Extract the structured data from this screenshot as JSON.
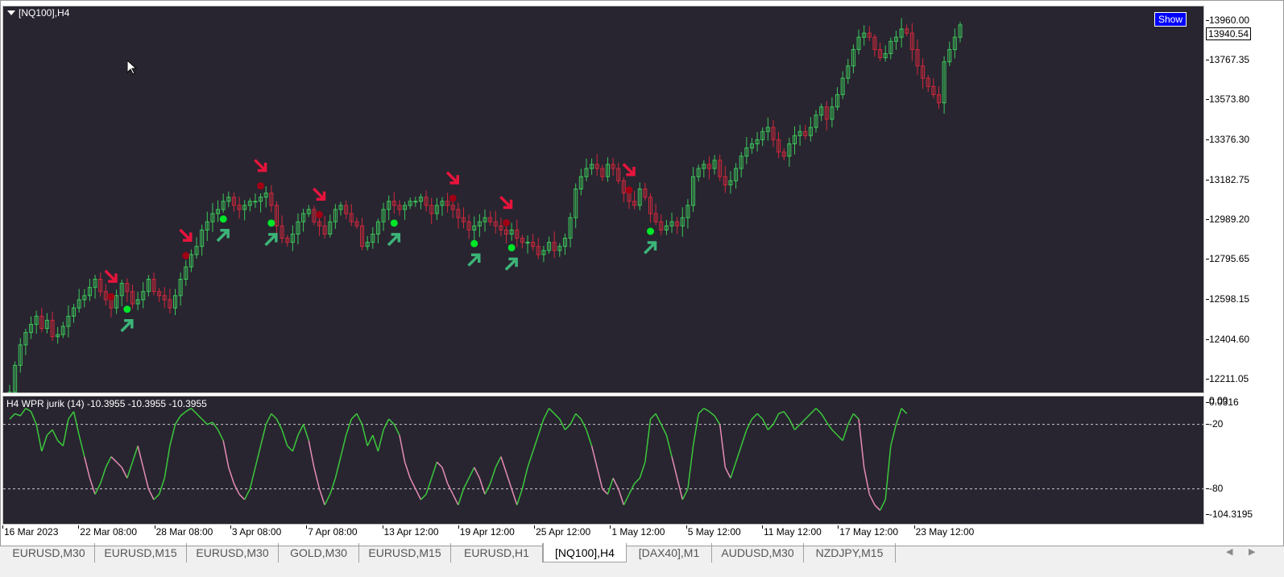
{
  "chart": {
    "title": "[NQ100],H4",
    "show_button": "Show",
    "current_price": "13940.54",
    "price_axis": [
      "13960.00",
      "13767.35",
      "13573.80",
      "13376.30",
      "13182.75",
      "12989.20",
      "12795.65",
      "12598.15",
      "12404.60",
      "12211.05"
    ],
    "price_range": [
      12140,
      14030
    ],
    "up_color": "#3cc85a",
    "down_color": "#d2283c",
    "signal_up_color": "#00e628",
    "signal_down_color": "#a00014",
    "arrow_up_color": "#3cb478",
    "arrow_down_color": "#e6143c"
  },
  "indicator": {
    "title": "H4  WPR jurik (14) -10.3955 -10.3955 -10.3955",
    "axis_labels": [
      "0.0316",
      "-20",
      "-80",
      "-104.3195"
    ],
    "axis_top_overlap": "0.00",
    "levels": [
      -20,
      -80
    ],
    "range": [
      -105,
      0
    ],
    "line_color_up": "#3cc83c",
    "line_color_down": "#e68cb4"
  },
  "time_axis": {
    "labels": [
      "16 Mar 2023",
      "22 Mar 08:00",
      "28 Mar 08:00",
      "3 Apr 08:00",
      "7 Apr 08:00",
      "13 Apr 12:00",
      "19 Apr 12:00",
      "25 Apr 12:00",
      "1 May 12:00",
      "5 May 12:00",
      "11 May 12:00",
      "17 May 12:00",
      "23 May 12:00"
    ]
  },
  "tabs": [
    {
      "label": "EURUSD,M30",
      "active": false
    },
    {
      "label": "EURUSD,M15",
      "active": false
    },
    {
      "label": "EURUSD,M30",
      "active": false
    },
    {
      "label": "GOLD,M30",
      "active": false
    },
    {
      "label": "EURUSD,M15",
      "active": false
    },
    {
      "label": "EURUSD,H1",
      "active": false
    },
    {
      "label": "[NQ100],H4",
      "active": true
    },
    {
      "label": "[DAX40],M1",
      "active": false
    },
    {
      "label": "AUDUSD,M30",
      "active": false
    },
    {
      "label": "NZDJPY,M15",
      "active": false
    }
  ],
  "chart_data": {
    "type": "line",
    "title": "[NQ100],H4",
    "series": [
      {
        "values": [
          12150,
          12280,
          12380,
          12440,
          12480,
          12520,
          12460,
          12500,
          12420,
          12430,
          12470,
          12520,
          12560,
          12600,
          12620,
          12660,
          12700,
          12640,
          12600,
          12560,
          12620,
          12680,
          12640,
          12580,
          12600,
          12640,
          12700,
          12640,
          12620,
          12600,
          12560,
          12620,
          12700,
          12760,
          12820,
          12860,
          12940,
          12980,
          13020,
          13040,
          13080,
          13100,
          13060,
          13040,
          13060,
          13080,
          13080,
          13100,
          13120,
          13060,
          12960,
          12900,
          12880,
          12920,
          12980,
          13020,
          13040,
          12980,
          12960,
          12920,
          12980,
          13040,
          13060,
          13020,
          12980,
          12960,
          12860,
          12880,
          12920,
          12980,
          13040,
          13080,
          13060,
          13040,
          13060,
          13080,
          13080,
          13100,
          13060,
          13020,
          13060,
          13080,
          13060,
          13040,
          13000,
          12980,
          12940,
          12960,
          12980,
          13000,
          12980,
          12960,
          12940,
          12920,
          12940,
          12900,
          12880,
          12880,
          12860,
          12820,
          12840,
          12880,
          12840,
          12860,
          12900,
          13000,
          13140,
          13200,
          13240,
          13260,
          13240,
          13200,
          13260,
          13240,
          13180,
          13120,
          13080,
          13060,
          13140,
          13100,
          13020,
          12980,
          12940,
          12960,
          12980,
          12960,
          13000,
          13060,
          13200,
          13240,
          13260,
          13240,
          13280,
          13200,
          13160,
          13180,
          13240,
          13300,
          13340,
          13360,
          13380,
          13420,
          13440,
          13380,
          13320,
          13300,
          13360,
          13400,
          13420,
          13400,
          13440,
          13500,
          13540,
          13480,
          13540,
          13600,
          13680,
          13740,
          13820,
          13880,
          13900,
          13880,
          13820,
          13780,
          13800,
          13860,
          13880,
          13920,
          13900,
          13820,
          13740,
          13680,
          13640,
          13600,
          13560,
          13760,
          13820,
          13880,
          13940
        ]
      },
      {
        "name": "",
        "values": [
          -15,
          -10,
          -12,
          -5,
          -8,
          -20,
          -45,
          -30,
          -25,
          -35,
          -40,
          -15,
          -8,
          -30,
          -50,
          -70,
          -85,
          -75,
          -60,
          -50,
          -55,
          -60,
          -70,
          -55,
          -40,
          -60,
          -80,
          -90,
          -85,
          -70,
          -40,
          -20,
          -12,
          -8,
          -5,
          -10,
          -15,
          -20,
          -18,
          -25,
          -35,
          -60,
          -75,
          -85,
          -90,
          -80,
          -60,
          -40,
          -20,
          -10,
          -15,
          -25,
          -40,
          -45,
          -30,
          -20,
          -35,
          -60,
          -80,
          -95,
          -85,
          -70,
          -50,
          -30,
          -15,
          -10,
          -20,
          -40,
          -30,
          -45,
          -25,
          -15,
          -20,
          -30,
          -55,
          -70,
          -80,
          -90,
          -85,
          -70,
          -55,
          -60,
          -75,
          -85,
          -95,
          -80,
          -70,
          -60,
          -70,
          -85,
          -75,
          -60,
          -50,
          -65,
          -80,
          -95,
          -80,
          -60,
          -45,
          -30,
          -15,
          -5,
          -10,
          -15,
          -25,
          -20,
          -10,
          -15,
          -25,
          -40,
          -60,
          -80,
          -85,
          -70,
          -80,
          -95,
          -85,
          -75,
          -70,
          -55,
          -15,
          -10,
          -20,
          -30,
          -50,
          -70,
          -90,
          -80,
          -40,
          -10,
          -5,
          -8,
          -12,
          -20,
          -60,
          -70,
          -55,
          -40,
          -25,
          -15,
          -10,
          -15,
          -25,
          -20,
          -10,
          -8,
          -15,
          -25,
          -20,
          -15,
          -10,
          -5,
          -10,
          -18,
          -25,
          -30,
          -35,
          -20,
          -10,
          -15,
          -60,
          -85,
          -95,
          -100,
          -90,
          -40,
          -20,
          -5,
          -10
        ]
      }
    ],
    "signals_buy": [
      22,
      40,
      49,
      72,
      87,
      94,
      120
    ],
    "signals_sell": [
      19,
      33,
      47,
      58,
      83,
      93,
      116
    ]
  }
}
